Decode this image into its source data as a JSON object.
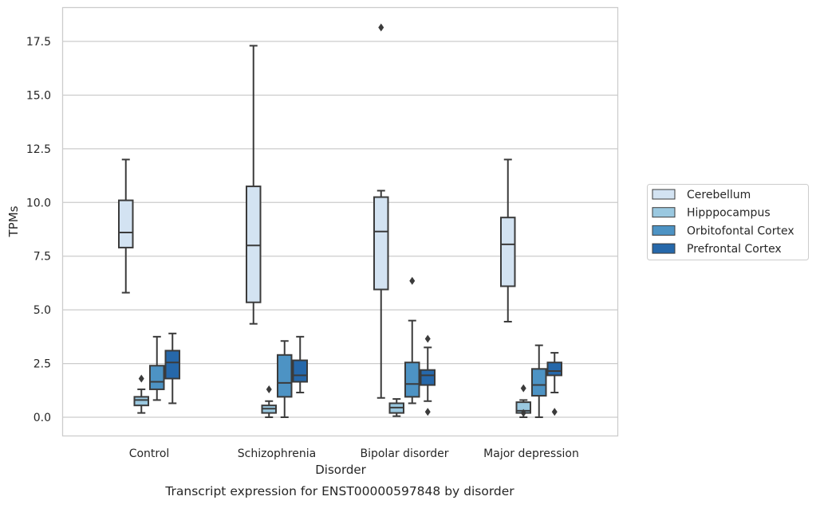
{
  "chart_data": {
    "type": "box",
    "title": "",
    "caption": "Transcript expression for ENST00000597848 by disorder",
    "xlabel": "Disorder",
    "ylabel": "TPMs",
    "ylim": [
      -0.9,
      19.0
    ],
    "yticks": [
      0.0,
      2.5,
      5.0,
      7.5,
      10.0,
      12.5,
      15.0,
      17.5
    ],
    "ytick_labels": [
      "0.0",
      "2.5",
      "5.0",
      "7.5",
      "10.0",
      "12.5",
      "15.0",
      "17.5"
    ],
    "grid": "horizontal",
    "legend_position": "right",
    "categories": [
      "Control",
      "Schizophrenia",
      "Bipolar disorder",
      "Major depression"
    ],
    "series": [
      {
        "name": "Cerebellum",
        "color": "#d3e3f2",
        "boxes": [
          {
            "whislo": 5.8,
            "q1": 7.9,
            "med": 8.6,
            "q3": 10.1,
            "whishi": 12.0,
            "fliers": []
          },
          {
            "whislo": 4.35,
            "q1": 5.35,
            "med": 8.0,
            "q3": 10.75,
            "whishi": 17.3,
            "fliers": []
          },
          {
            "whislo": 0.9,
            "q1": 5.95,
            "med": 8.65,
            "q3": 10.25,
            "whishi": 10.55,
            "fliers": [
              18.15
            ]
          },
          {
            "whislo": 4.45,
            "q1": 6.1,
            "med": 8.05,
            "q3": 9.3,
            "whishi": 12.0,
            "fliers": []
          }
        ]
      },
      {
        "name": "Hipppocampus",
        "color": "#9ac8e0",
        "boxes": [
          {
            "whislo": 0.2,
            "q1": 0.55,
            "med": 0.8,
            "q3": 0.95,
            "whishi": 1.3,
            "fliers": [
              1.8
            ]
          },
          {
            "whislo": 0.0,
            "q1": 0.2,
            "med": 0.4,
            "q3": 0.55,
            "whishi": 0.75,
            "fliers": [
              1.3
            ]
          },
          {
            "whislo": 0.05,
            "q1": 0.2,
            "med": 0.45,
            "q3": 0.65,
            "whishi": 0.85,
            "fliers": []
          },
          {
            "whislo": 0.0,
            "q1": 0.2,
            "med": 0.3,
            "q3": 0.7,
            "whishi": 0.8,
            "fliers": [
              0.2,
              1.35
            ]
          }
        ]
      },
      {
        "name": "Orbitofontal Cortex",
        "color": "#4d93c4",
        "boxes": [
          {
            "whislo": 0.8,
            "q1": 1.3,
            "med": 1.65,
            "q3": 2.4,
            "whishi": 3.75,
            "fliers": []
          },
          {
            "whislo": 0.0,
            "q1": 0.95,
            "med": 1.6,
            "q3": 2.9,
            "whishi": 3.55,
            "fliers": []
          },
          {
            "whislo": 0.65,
            "q1": 0.95,
            "med": 1.55,
            "q3": 2.55,
            "whishi": 4.5,
            "fliers": [
              6.35
            ]
          },
          {
            "whislo": 0.0,
            "q1": 1.0,
            "med": 1.5,
            "q3": 2.25,
            "whishi": 3.35,
            "fliers": []
          }
        ]
      },
      {
        "name": "Prefrontal Cortex",
        "color": "#2668aa",
        "boxes": [
          {
            "whislo": 0.65,
            "q1": 1.8,
            "med": 2.55,
            "q3": 3.1,
            "whishi": 3.9,
            "fliers": []
          },
          {
            "whislo": 1.15,
            "q1": 1.65,
            "med": 1.95,
            "q3": 2.65,
            "whishi": 3.75,
            "fliers": []
          },
          {
            "whislo": 0.75,
            "q1": 1.5,
            "med": 1.95,
            "q3": 2.2,
            "whishi": 3.25,
            "fliers": [
              0.25,
              3.65
            ]
          },
          {
            "whislo": 1.15,
            "q1": 1.95,
            "med": 2.15,
            "q3": 2.55,
            "whishi": 3.0,
            "fliers": [
              0.25
            ]
          }
        ]
      }
    ]
  }
}
